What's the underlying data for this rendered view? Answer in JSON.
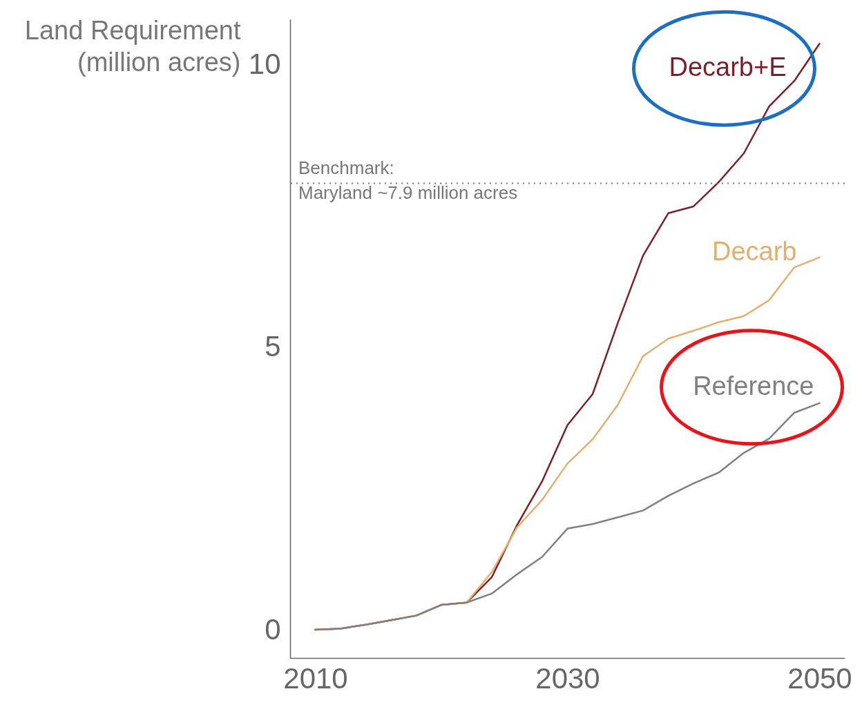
{
  "chart_data": {
    "type": "line",
    "ylabel": "Land Requirement\n(million acres)",
    "x": [
      2010,
      2012,
      2014,
      2016,
      2018,
      2020,
      2022,
      2024,
      2026,
      2028,
      2030,
      2032,
      2034,
      2036,
      2038,
      2040,
      2042,
      2044,
      2046,
      2048,
      2050
    ],
    "xlim": [
      2008,
      2052
    ],
    "xticks": [
      2010,
      2030,
      2050
    ],
    "ylim": [
      -0.5,
      10.8
    ],
    "yticks": [
      0,
      5,
      10
    ],
    "grid": false,
    "legend": false,
    "series": [
      {
        "name": "Decarb+E",
        "color": "#7b1f2b",
        "values": [
          0.0,
          0.02,
          0.09,
          0.17,
          0.25,
          0.44,
          0.48,
          0.93,
          1.85,
          2.63,
          3.62,
          4.17,
          5.43,
          6.62,
          7.37,
          7.49,
          7.92,
          8.43,
          9.26,
          9.71,
          10.37
        ]
      },
      {
        "name": "Decarb",
        "color": "#e0b070",
        "values": [
          0.0,
          0.02,
          0.09,
          0.17,
          0.25,
          0.44,
          0.48,
          1.02,
          1.81,
          2.3,
          2.94,
          3.37,
          3.98,
          4.84,
          5.15,
          5.29,
          5.44,
          5.55,
          5.83,
          6.41,
          6.59
        ]
      },
      {
        "name": "Reference",
        "color": "#808080",
        "values": [
          0.0,
          0.02,
          0.09,
          0.17,
          0.25,
          0.44,
          0.48,
          0.64,
          0.98,
          1.29,
          1.79,
          1.87,
          1.99,
          2.11,
          2.37,
          2.59,
          2.78,
          3.13,
          3.38,
          3.84,
          4.01
        ]
      }
    ],
    "ref_lines": [
      {
        "axis": "y",
        "value": 7.9,
        "label": "Benchmark:\nMaryland ~7.9 million acres",
        "color": "#777777",
        "line_style": "dotted"
      }
    ]
  }
}
